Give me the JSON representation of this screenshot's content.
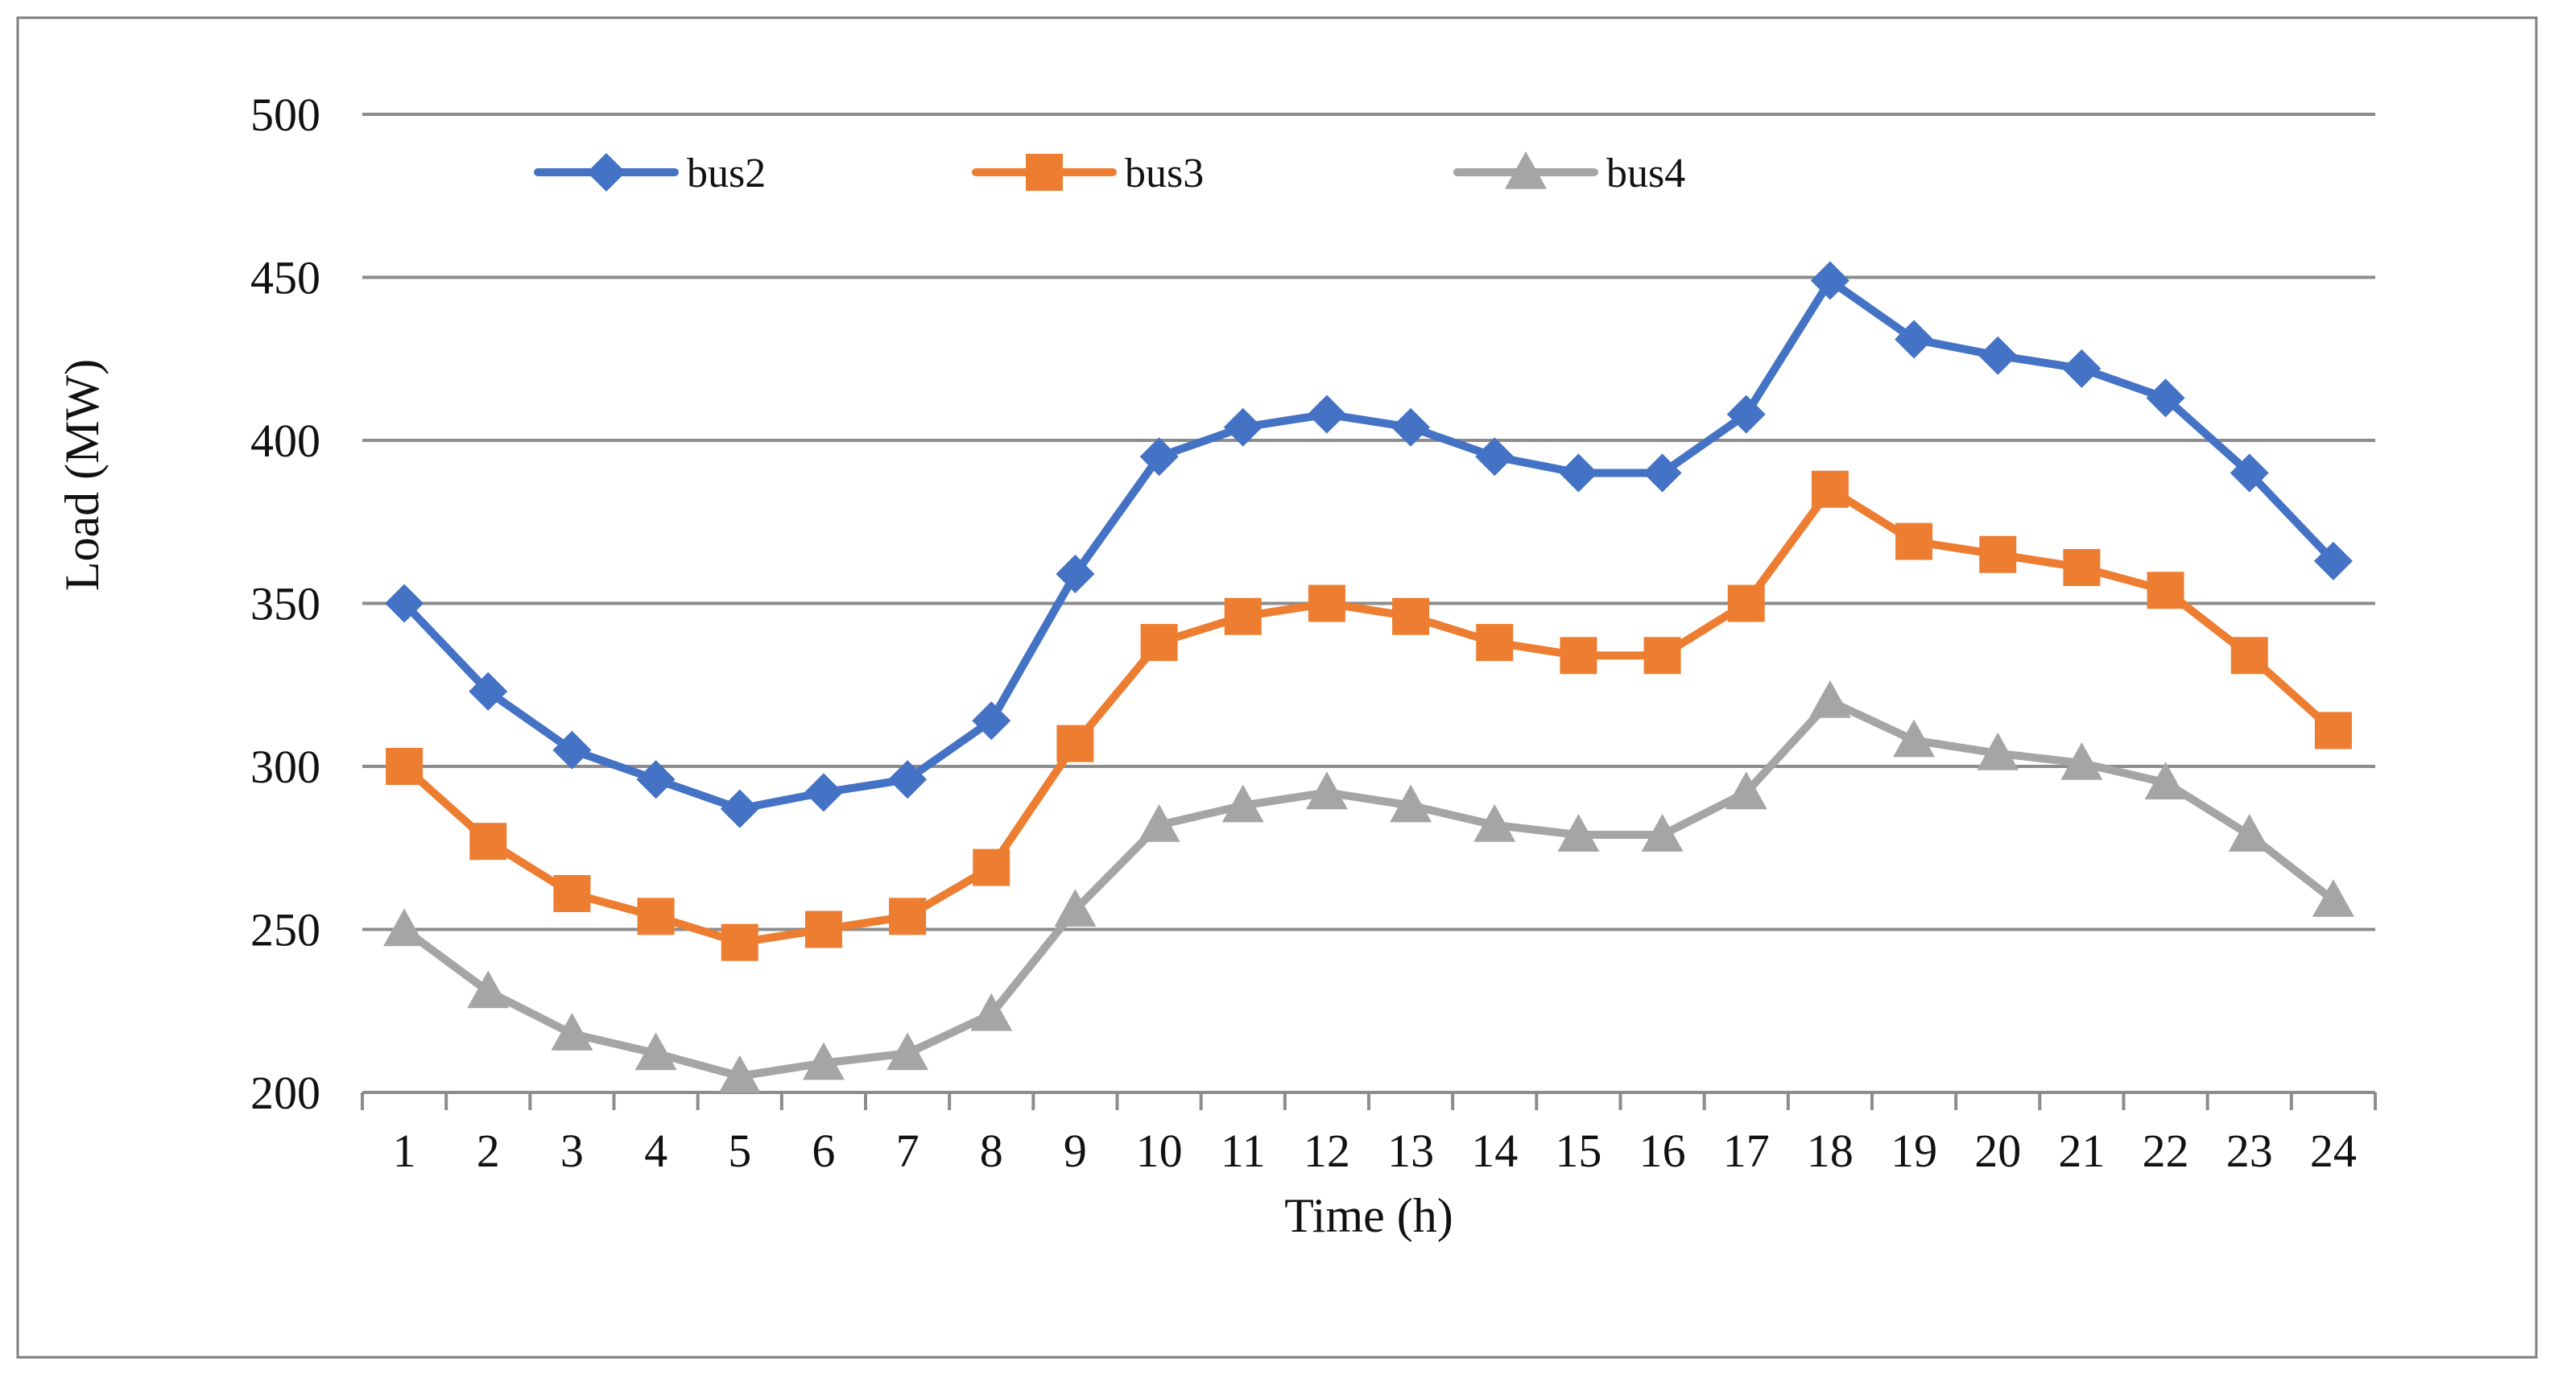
{
  "chart_data": {
    "type": "line",
    "title": "",
    "xlabel": "Time (h)",
    "ylabel": "Load (MW)",
    "ylim": [
      200,
      500
    ],
    "yticks": [
      200,
      250,
      300,
      350,
      400,
      450,
      500
    ],
    "categories": [
      "1",
      "2",
      "3",
      "4",
      "5",
      "6",
      "7",
      "8",
      "9",
      "10",
      "11",
      "12",
      "13",
      "14",
      "15",
      "16",
      "17",
      "18",
      "19",
      "20",
      "21",
      "22",
      "23",
      "24"
    ],
    "grid": true,
    "legend_position": "top",
    "series": [
      {
        "name": "bus2",
        "color": "#4472C4",
        "marker": "diamond",
        "values": [
          350,
          323,
          305,
          296,
          287,
          292,
          296,
          314,
          359,
          395,
          404,
          408,
          404,
          395,
          390,
          390,
          408,
          449,
          431,
          426,
          422,
          413,
          390,
          363
        ]
      },
      {
        "name": "bus3",
        "color": "#ED7D31",
        "marker": "square",
        "values": [
          300,
          277,
          261,
          254,
          246,
          250,
          254,
          269,
          307,
          338,
          346,
          350,
          346,
          338,
          334,
          334,
          350,
          385,
          369,
          365,
          361,
          354,
          334,
          311
        ]
      },
      {
        "name": "bus4",
        "color": "#A5A5A5",
        "marker": "triangle",
        "values": [
          250,
          231,
          218,
          212,
          205,
          209,
          212,
          224,
          256,
          282,
          288,
          292,
          288,
          282,
          279,
          279,
          292,
          320,
          308,
          304,
          301,
          295,
          279,
          259
        ]
      }
    ]
  }
}
